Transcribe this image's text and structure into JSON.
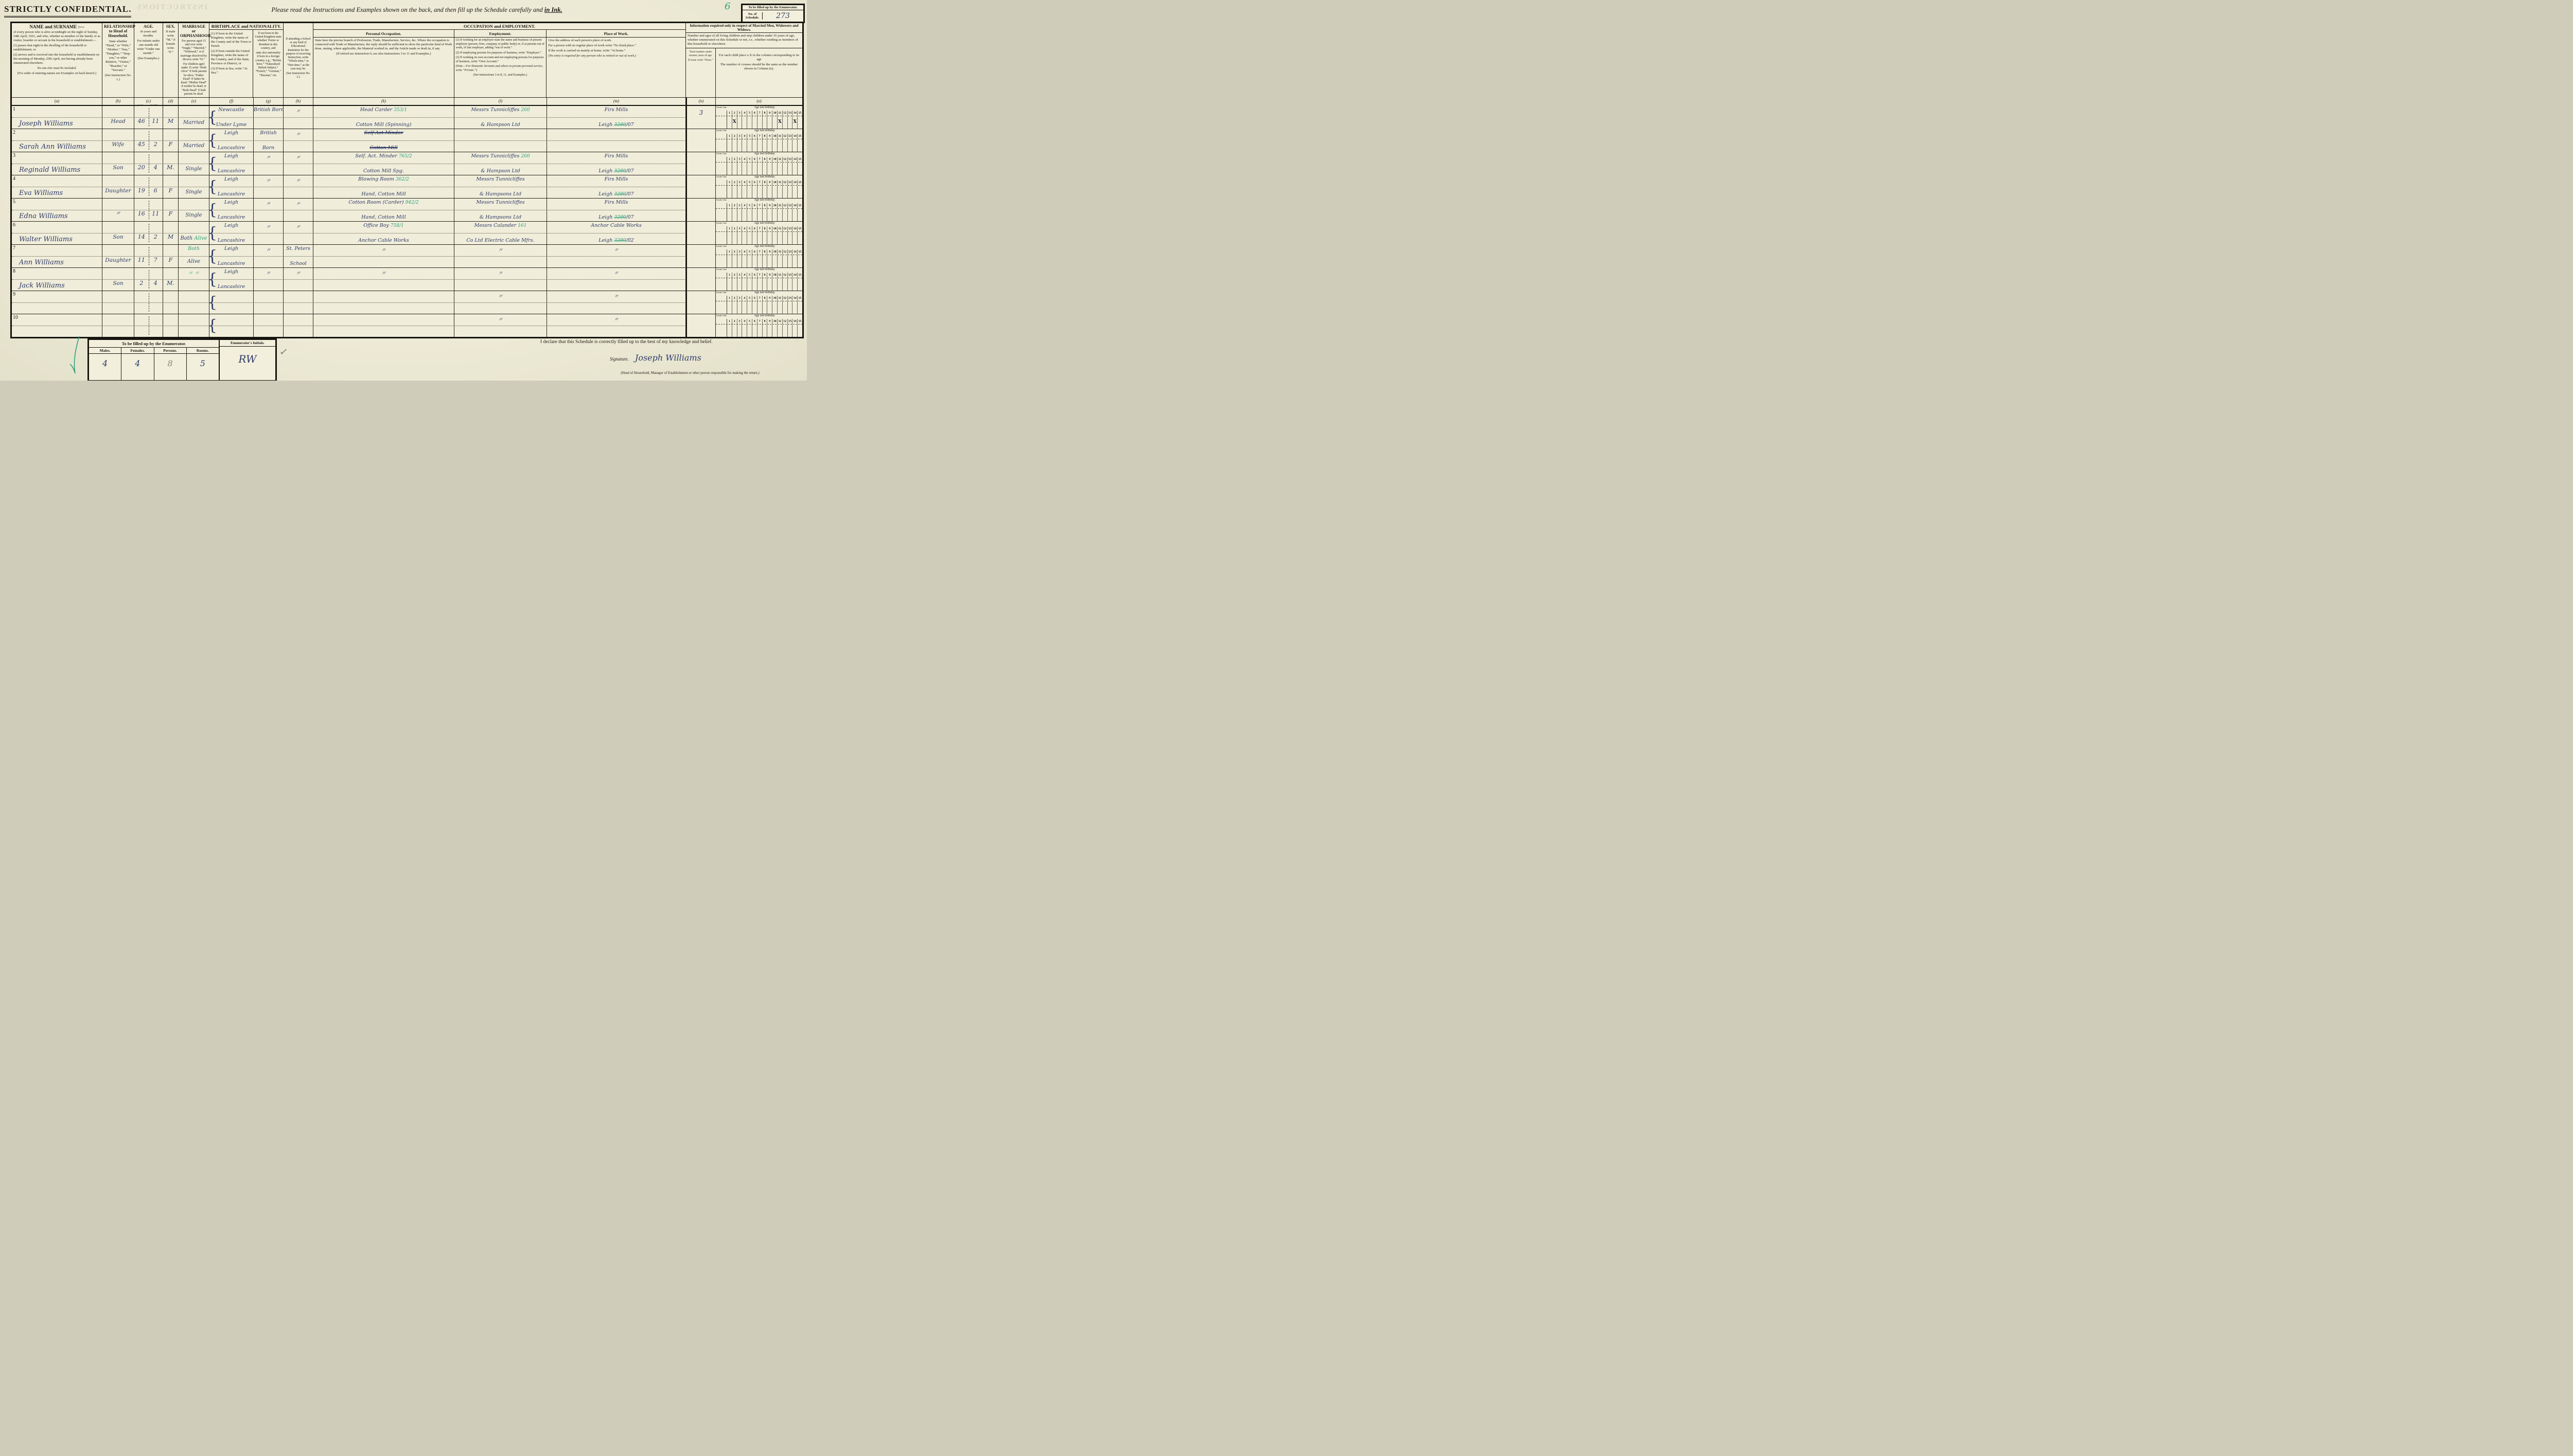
{
  "header": {
    "confidential": "STRICTLY CONFIDENTIAL.",
    "bleed_text": "INSTRUCTIONS",
    "instruction_pre": "Please read the Instructions and Examples shown on the back, and then fill up the Schedule carefully and ",
    "instruction_ink": "in Ink.",
    "green_mark": "6",
    "enumerator_box": {
      "title": "To be filled up by the Enumerator.",
      "schedule_label": "No. of Schedule.",
      "schedule_no": "273"
    }
  },
  "columns": {
    "a": {
      "title": "NAME and SURNAME :—",
      "p1": "of every person who is alive at midnight on the night of Sunday, 24th April, 1921, and who, whether as member of the family or as visitor, boarder or servant in the household or establishment:—",
      "p2": "(1) passes that night in the dwelling of the household or establishment, or",
      "p3": "(2) arrives and is received into the household or establishment on the morning of Monday, 25th April, not having already been enumerated elsewhere.",
      "p4": "No one else must be included.",
      "p5": "(For order of entering names see Examples on back hereof.)",
      "letter": "(a)"
    },
    "b": {
      "title": "RELATIONSHIP to Head of Household.",
      "p1": "State whether “Head,” or “Wife,” “Mother,” “Son,” “Daughter,” “Step-son,” or other Relative, “Visitor,” “Boarder,” or “Servant.”",
      "p2": "(See Instruction No. 1.)",
      "letter": "(b)"
    },
    "c": {
      "title": "AGE.",
      "p1": "In years and months.",
      "p2": "For infants under one month old write “Under one month.”",
      "p3": "(See Examples.)",
      "sub_years": "years.",
      "sub_months": "months.",
      "letter": "(c)"
    },
    "d": {
      "title": "SEX.",
      "p1": "If male write “M,” if female write “F.”",
      "letter": "(d)"
    },
    "e": {
      "title": "MARRIAGE or ORPHANHOOD.",
      "p1": "For persons aged 15 and over write “Single,” “Married,” “Widowed,” or if marriage dissolved by divorce write “D.”",
      "p2": "For children aged under 15 write “Both Alive” if both parents be alive; “Father Dead” if father be dead; “Mother Dead” if mother be dead; or “Both Dead” if both parents be dead.",
      "letter": "(e)"
    },
    "f": {
      "p1": "(1) If born in the United Kingdom, write the name of the County and of the Town or Parish.",
      "p2": "(2) If born outside the United Kingdom, write the name of the Country, and of the State, Province or District, or",
      "p3": "(3) If born at Sea, write “At Sea.”",
      "letter": "(f)"
    },
    "g": {
      "p1": "If not born in the United Kingdom state whether Visitor or Resident in this country, and",
      "p2": "state also nationality if born in a foreign country, e.g., “British born,” “Naturalised British Subject,” “French,” “German,” “Russian,” etc.",
      "letter": "(g)"
    },
    "h": {
      "p1": "If attending a School or any kind of Educational Institution for the purpose of receiving Instruction, write “Whole-time,” or “Part-time,” as the case may be.",
      "p2": "(See Instruction No. 2.)",
      "letter": "(h)"
    },
    "k": {
      "title": "Personal Occupation.",
      "p1": "State here the precise branch of Profession, Trade, Manufacture, Service, &c. Where the occupation is connected with Trade or Manufacture, the reply should be sufficient to show the particular kind of Work done, stating, where applicable, the Material worked in, and the Article made or dealt in, if any.",
      "p2": "(If retired see Instruction 6; see also Instructions 3 to 11 and Examples.)",
      "letter": "(k)"
    },
    "l": {
      "title": "Employment.",
      "p1": "(1) If working for an employer state the name and business of present employer (person, firm, company or public body) or, if at present out of work, of last employer, adding “out of work.”",
      "p2": "(2) If employing persons for purposes of business, write “Employer.”",
      "p3": "(3) If working on own account and not employing persons for purposes of business, write “Own Account.”",
      "p4": "(Note.—For Domestic Servants and others in private personal service, write “Private.”)",
      "p5": "(See Instructions 3 to 8, 11, and Examples.)",
      "letter": "(l)"
    },
    "m": {
      "title": "Place of Work.",
      "p1": "Give the address of each person's place of work.",
      "p2": "For a person with no regular place of work write “No fixed place.”",
      "p3": "If the work is carried on mainly at home, write “At home.”",
      "p4": "(No entry is required for any person who is retired or out of work.)",
      "letter": "(m)"
    },
    "n": {
      "p1": "Total number under sixteen years of age.",
      "p2": "If none write “None.”",
      "letter": "(n)"
    },
    "o": {
      "p1": "For each child place a X in the column corresponding to its age",
      "p2": "The number of crosses should be the same as the number shown in Column (n).",
      "letter": "(o)"
    }
  },
  "groups": {
    "fg_title": "BIRTHPLACE and NATIONALITY.",
    "klm_title": "OCCUPATION and EMPLOYMENT.",
    "no_title": "Information required only in respect of Married Men, Widowers and Widows.",
    "no_note": "Number and ages of all living children and step children under 16 years of age, whether enumerated on this Schedule or not, i.e., whether residing as members of this household or elsewhere."
  },
  "age_grid": {
    "under_one": "Under One",
    "age_label": "Age last birthday.",
    "numbers": [
      "1",
      "2",
      "3",
      "4",
      "5",
      "6",
      "7",
      "8",
      "9",
      "10",
      "11",
      "12",
      "13",
      "14",
      "15"
    ]
  },
  "rows": [
    {
      "num": "1",
      "name": "Joseph Williams",
      "relationship": "Head",
      "age_years": "46",
      "age_months": "11",
      "sex": "M",
      "marriage": "Married",
      "marriage_green_top": "",
      "marriage_green_suffix": "",
      "birthplace1": "Newcastle",
      "birthplace2": "Under Lyme",
      "nationality1": "British Born",
      "nationality2": "",
      "school1": "〃",
      "school2": "",
      "occ1": "Head Carder",
      "occ2": "Cotton Mill (Spinning)",
      "occ_code": "353/1",
      "occ_struck": false,
      "emp1": "Messrs Tunnicliffes",
      "emp2": "& Hampson Ltd",
      "emp_code": "260",
      "place1": "Firs Mills",
      "place2": "Leigh",
      "place_code": "3280",
      "place_suffix": "/07",
      "children_total": "3",
      "crosses": [
        2,
        11,
        14
      ]
    },
    {
      "num": "2",
      "name": "Sarah Ann Williams",
      "relationship": "Wife",
      "age_years": "45",
      "age_months": "2",
      "sex": "F",
      "marriage": "Married",
      "marriage_green_top": "",
      "marriage_green_suffix": "",
      "birthplace1": "Leigh",
      "birthplace2": "Lancashire",
      "nationality1": "British",
      "nationality2": "Born",
      "school1": "〃",
      "school2": "",
      "occ1": "Self Act Minder",
      "occ2": "Cotton Mill",
      "occ_code": "",
      "occ_struck": true,
      "emp1": "",
      "emp2": "",
      "emp_code": "",
      "place1": "",
      "place2": "",
      "place_code": "",
      "place_suffix": "",
      "children_total": "",
      "crosses": []
    },
    {
      "num": "3",
      "name": "Reginald Williams",
      "relationship": "Son",
      "age_years": "20",
      "age_months": "4",
      "sex": "M.",
      "marriage": "Single",
      "marriage_green_top": "",
      "marriage_green_suffix": "",
      "birthplace1": "Leigh",
      "birthplace2": "Lancashire",
      "nationality1": "〃",
      "nationality2": "",
      "school1": "〃",
      "school2": "",
      "occ1": "Self. Act. Minder",
      "occ2": "Cotton Mill Spg.",
      "occ_code": "765/2",
      "occ_struck": false,
      "emp1": "Messrs Tunnicliffes",
      "emp2": "& Hampson Ltd",
      "emp_code": "260",
      "place1": "Firs Mills",
      "place2": "Leigh",
      "place_code": "3280",
      "place_suffix": "/07",
      "children_total": "",
      "crosses": []
    },
    {
      "num": "4",
      "name": "Eva Williams",
      "relationship": "Daughter",
      "age_years": "19",
      "age_months": "6",
      "sex": "F",
      "marriage": "Single",
      "marriage_green_top": "",
      "marriage_green_suffix": "",
      "birthplace1": "Leigh",
      "birthplace2": "Lancashire",
      "nationality1": "〃",
      "nationality2": "",
      "school1": "〃",
      "school2": "",
      "occ1": "Blowing Room",
      "occ2": "Hand, Cotton Mill",
      "occ_code": "362/2",
      "occ_struck": false,
      "emp1": "Messrs Tunnicliffes",
      "emp2": "& Hampsons Ltd",
      "emp_code": "",
      "place1": "Firs Mills",
      "place2": "Leigh",
      "place_code": "3280",
      "place_suffix": "/07",
      "children_total": "",
      "crosses": []
    },
    {
      "num": "5",
      "name": "Edna Williams",
      "relationship": "〃",
      "age_years": "16",
      "age_months": "11",
      "sex": "F",
      "marriage": "Single",
      "marriage_green_top": "",
      "marriage_green_suffix": "",
      "birthplace1": "Leigh",
      "birthplace2": "Lancashire",
      "nationality1": "〃",
      "nationality2": "",
      "school1": "〃",
      "school2": "",
      "occ1": "Cotton Room (Carder)",
      "occ2": "Hand, Cotton Mill",
      "occ_code": "942/2",
      "occ_struck": false,
      "emp1": "Messrs Tunnicliffes",
      "emp2": "& Hampsons Ltd",
      "emp_code": "",
      "place1": "Firs Mills",
      "place2": "Leigh",
      "place_code": "3280",
      "place_suffix": "/07",
      "children_total": "",
      "crosses": []
    },
    {
      "num": "6",
      "name": "Walter Williams",
      "relationship": "Son",
      "age_years": "14",
      "age_months": "2",
      "sex": "M",
      "marriage": "Both",
      "marriage_green_top": "",
      "marriage_green_suffix": "Alive",
      "birthplace1": "Leigh",
      "birthplace2": "Lancashire",
      "nationality1": "〃",
      "nationality2": "",
      "school1": "〃",
      "school2": "",
      "occ1": "Office Boy",
      "occ2": "Anchor Cable Works",
      "occ_code": "758/1",
      "occ_struck": false,
      "emp1": "Messrs Calander",
      "emp2": "Co Ltd  Electric Cable Mfrs.",
      "emp_code": "161",
      "place1": "Anchor Cable Works",
      "place2": "Leigh",
      "place_code": "3280",
      "place_suffix": "/02",
      "children_total": "",
      "crosses": []
    },
    {
      "num": "7",
      "name": "Ann Williams",
      "relationship": "Daughter",
      "age_years": "11",
      "age_months": "7",
      "sex": "F",
      "marriage": "Alive",
      "marriage_green_top": "Both",
      "marriage_green_suffix": "",
      "birthplace1": "Leigh",
      "birthplace2": "Lancashire",
      "nationality1": "〃",
      "nationality2": "",
      "school1": "St. Peters",
      "school2": "School",
      "occ1": "〃",
      "occ2": "",
      "occ_code": "",
      "occ_struck": false,
      "emp1": "〃",
      "emp2": "",
      "emp_code": "",
      "place1": "〃",
      "place2": "",
      "place_code": "",
      "place_suffix": "",
      "children_total": "",
      "crosses": []
    },
    {
      "num": "8",
      "name": "Jack Williams",
      "relationship": "Son",
      "age_years": "2",
      "age_months": "4",
      "sex": "M.",
      "marriage": "",
      "marriage_green_top": "〃 〃",
      "marriage_green_suffix": "",
      "birthplace1": "Leigh",
      "birthplace2": "Lancashire",
      "nationality1": "〃",
      "nationality2": "",
      "school1": "〃",
      "school2": "",
      "occ1": "〃",
      "occ2": "",
      "occ_code": "",
      "occ_struck": false,
      "emp1": "〃",
      "emp2": "",
      "emp_code": "",
      "place1": "〃",
      "place2": "",
      "place_code": "",
      "place_suffix": "",
      "children_total": "",
      "crosses": []
    },
    {
      "num": "9",
      "name": "",
      "relationship": "",
      "age_years": "",
      "age_months": "",
      "sex": "",
      "marriage": "",
      "marriage_green_top": "",
      "marriage_green_suffix": "",
      "birthplace1": "",
      "birthplace2": "",
      "nationality1": "",
      "nationality2": "",
      "school1": "",
      "school2": "",
      "occ1": "",
      "occ2": "",
      "occ_code": "",
      "occ_struck": false,
      "emp1": "〃",
      "emp2": "",
      "emp_code": "",
      "place1": "〃",
      "place2": "",
      "place_code": "",
      "place_suffix": "",
      "children_total": "",
      "crosses": []
    },
    {
      "num": "10",
      "name": "",
      "relationship": "",
      "age_years": "",
      "age_months": "",
      "sex": "",
      "marriage": "",
      "marriage_green_top": "",
      "marriage_green_suffix": "",
      "birthplace1": "",
      "birthplace2": "",
      "nationality1": "",
      "nationality2": "",
      "school1": "",
      "school2": "",
      "occ1": "",
      "occ2": "",
      "occ_code": "",
      "occ_struck": false,
      "emp1": "〃",
      "emp2": "",
      "emp_code": "",
      "place1": "〃",
      "place2": "",
      "place_code": "",
      "place_suffix": "",
      "children_total": "",
      "crosses": []
    }
  ],
  "footer": {
    "enumerator_box": {
      "title": "To be filled up by the Enumerator.",
      "col_males": "Males.",
      "col_females": "Females.",
      "col_persons": "Persons.",
      "col_rooms": "Rooms.",
      "males": "4",
      "females": "4",
      "persons": "8",
      "rooms": "5",
      "initials_label": "Enumerator's Initials.",
      "initials": "RW"
    },
    "declaration": "I declare that this Schedule is correctly filled up to the best of my knowledge and belief.",
    "signature_label": "Signature.",
    "signature": "Joseph Williams",
    "responsible_note": "(Head of Household, Manager of Establishment or other person responsible for making the return.)"
  }
}
